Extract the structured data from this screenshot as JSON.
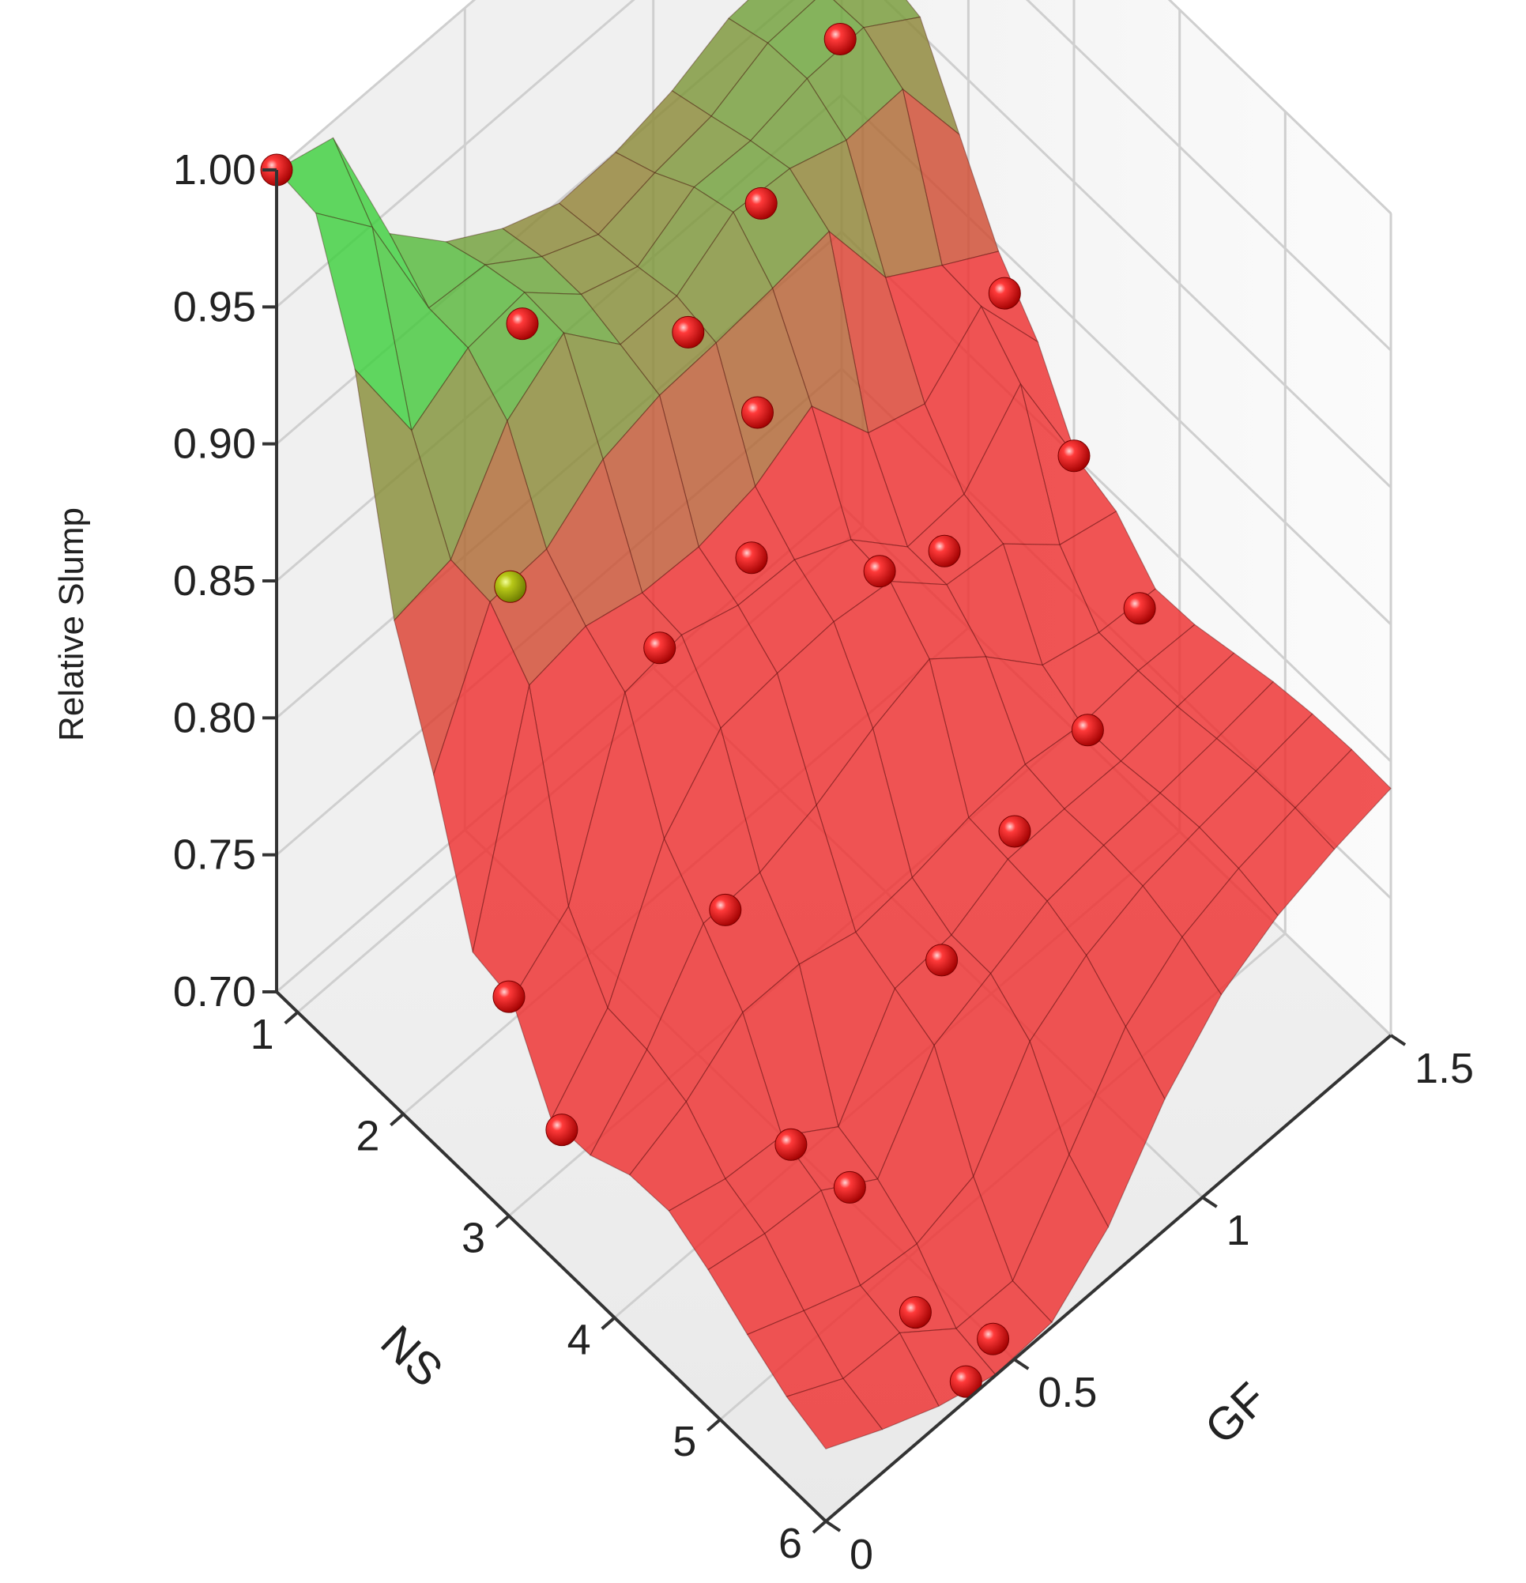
{
  "chart_data": {
    "type": "surface3d",
    "axes": {
      "x": {
        "label": "NS",
        "ticks": [
          "1",
          "2",
          "3",
          "4",
          "5",
          "6"
        ],
        "range": [
          0.8,
          6
        ]
      },
      "y": {
        "label": "GF",
        "ticks": [
          "0",
          "0.5",
          "1",
          "1.5"
        ],
        "range": [
          0,
          1.5
        ]
      },
      "z": {
        "label": "Relative Slump",
        "ticks": [
          "0.70",
          "0.75",
          "0.80",
          "0.85",
          "0.90",
          "0.95",
          "1.00"
        ],
        "range": [
          0.7,
          1.0
        ]
      }
    },
    "grid": true,
    "colors": {
      "surface_high": "#3ecf3e",
      "surface_low": "#ee3030",
      "marker": "#dd1111",
      "grid": "#cfcfcf"
    },
    "points": [
      {
        "ns": 0.8,
        "gf": 0.0,
        "slump": 1.0
      },
      {
        "ns": 1.7,
        "gf": 0.4,
        "slump": 0.93
      },
      {
        "ns": 2.3,
        "gf": 0.2,
        "slump": 0.88
      },
      {
        "ns": 2.2,
        "gf": 0.7,
        "slump": 0.91
      },
      {
        "ns": 2.0,
        "gf": 0.95,
        "slump": 0.92
      },
      {
        "ns": 1.5,
        "gf": 1.3,
        "slump": 0.92
      },
      {
        "ns": 2.5,
        "gf": 0.8,
        "slump": 0.88
      },
      {
        "ns": 3.0,
        "gf": 0.4,
        "slump": 0.86
      },
      {
        "ns": 2.8,
        "gf": 0.7,
        "slump": 0.85
      },
      {
        "ns": 3.3,
        "gf": 0.9,
        "slump": 0.84
      },
      {
        "ns": 3.2,
        "gf": 1.1,
        "slump": 0.82
      },
      {
        "ns": 2.7,
        "gf": 1.4,
        "slump": 0.86
      },
      {
        "ns": 3.0,
        "gf": 0.0,
        "slump": 0.78
      },
      {
        "ns": 3.8,
        "gf": 0.35,
        "slump": 0.8
      },
      {
        "ns": 3.5,
        "gf": 0.0,
        "slump": 0.75
      },
      {
        "ns": 4.6,
        "gf": 0.3,
        "slump": 0.75
      },
      {
        "ns": 4.8,
        "gf": 0.4,
        "slump": 0.73
      },
      {
        "ns": 4.6,
        "gf": 0.7,
        "slump": 0.77
      },
      {
        "ns": 4.4,
        "gf": 0.95,
        "slump": 0.78
      },
      {
        "ns": 4.2,
        "gf": 1.2,
        "slump": 0.78
      },
      {
        "ns": 3.8,
        "gf": 1.45,
        "slump": 0.78
      },
      {
        "ns": 3.0,
        "gf": 1.5,
        "slump": 0.8
      },
      {
        "ns": 5.6,
        "gf": 0.35,
        "slump": 0.72
      },
      {
        "ns": 5.9,
        "gf": 0.4,
        "slump": 0.7
      },
      {
        "ns": 5.8,
        "gf": 0.5,
        "slump": 0.7
      }
    ]
  }
}
